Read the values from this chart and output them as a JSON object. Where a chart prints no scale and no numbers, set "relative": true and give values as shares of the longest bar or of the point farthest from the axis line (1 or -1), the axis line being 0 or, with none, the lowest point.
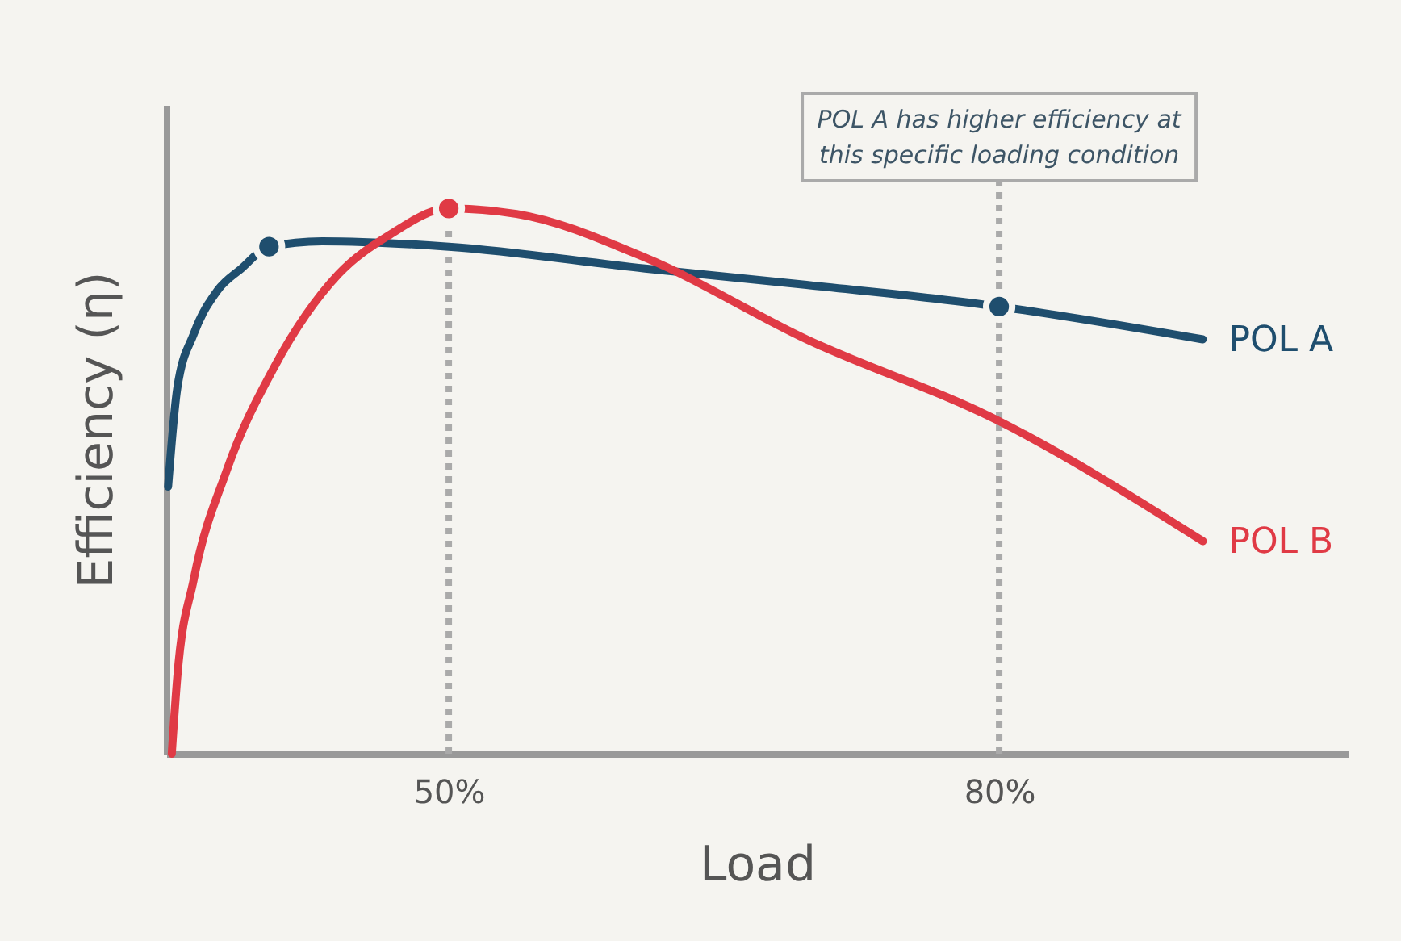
{
  "chart_data": {
    "type": "line",
    "xlabel": "Load",
    "ylabel": "Efficiency (η)",
    "relative": true,
    "grid": false,
    "xlim": [
      34.6,
      99
    ],
    "xticks": [
      {
        "value": 50,
        "label": "50%"
      },
      {
        "value": 80,
        "label": "80%"
      }
    ],
    "series": [
      {
        "name": "POL A",
        "color": "#1f4e6e",
        "x": [
          34.7,
          35.2,
          36.1,
          37.4,
          38.7,
          40.2,
          43.1,
          50,
          60.7,
          69.5,
          80,
          91.1
        ],
        "values": [
          0.49,
          0.67,
          0.77,
          0.85,
          0.89,
          0.93,
          0.94,
          0.93,
          0.89,
          0.86,
          0.82,
          0.76
        ]
      },
      {
        "name": "POL B",
        "color": "#e03a45",
        "x": [
          34.9,
          35.2,
          36.1,
          37.9,
          40.5,
          44.0,
          46.7,
          50,
          53.7,
          60.7,
          69.5,
          80,
          91.1
        ],
        "values": [
          0,
          0.14,
          0.32,
          0.52,
          0.71,
          0.88,
          0.95,
          1,
          0.99,
          0.91,
          0.76,
          0.61,
          0.39
        ]
      },
      {
        "type": "scatter",
        "color": "#1f4e6e",
        "marker": "circle",
        "x": [
          40.2,
          80
        ],
        "values": [
          0.93,
          0.82
        ]
      },
      {
        "type": "scatter",
        "color": "#e03a45",
        "marker": "circle",
        "x": [
          50
        ],
        "values": [
          1
        ]
      }
    ],
    "ref_lines": [
      {
        "axis": "x",
        "value": 50,
        "color": "#aaaaaa",
        "line_style": "dotted"
      },
      {
        "axis": "x",
        "value": 80,
        "color": "#aaaaaa",
        "line_style": "dotted",
        "label": "POL A has higher efficiency at this specific loading condition"
      }
    ]
  }
}
